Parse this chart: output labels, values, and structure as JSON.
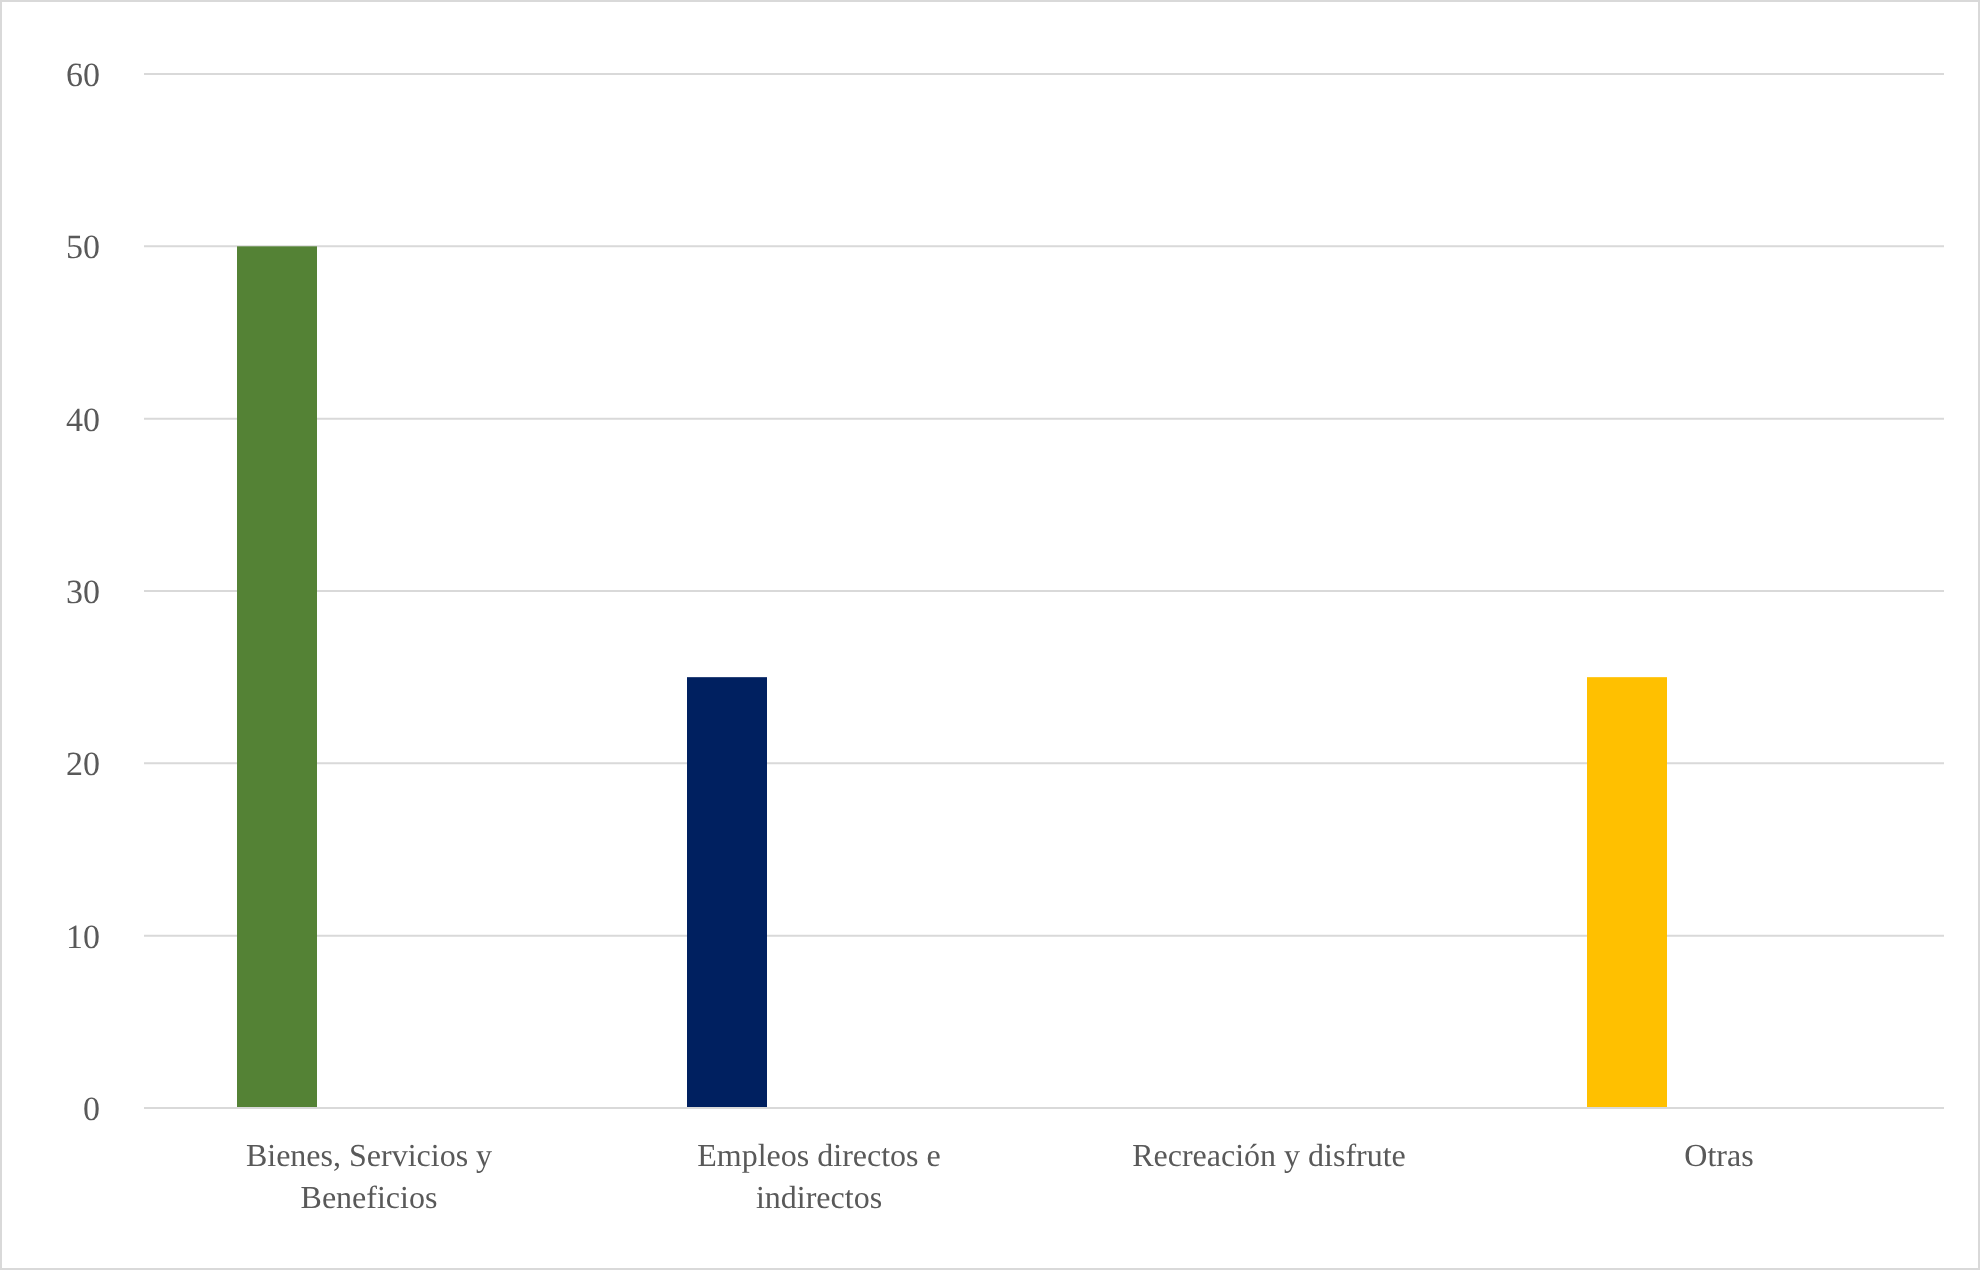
{
  "chart_data": {
    "type": "bar",
    "categories": [
      "Bienes, Servicios y Beneficios",
      "Empleos directos e indirectos",
      "Recreación y disfrute",
      "Otras"
    ],
    "values": [
      50,
      25,
      0,
      25
    ],
    "colors": [
      "#548235",
      "#002060",
      null,
      "#ffc000"
    ],
    "ylim": [
      0,
      60
    ],
    "yticks": [
      0,
      10,
      20,
      30,
      40,
      50,
      60
    ],
    "grid": "y"
  }
}
